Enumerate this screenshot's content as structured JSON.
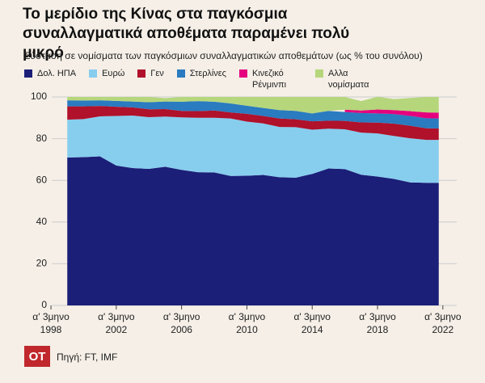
{
  "chart_data": {
    "type": "area",
    "title": "Το μερίδιο της Κίνας στα παγκόσμια συναλλαγματικά αποθέματα παραμένει πολύ μικρό",
    "subtitle": "Σύσταση σε νομίσματα των παγκόσμιων συναλλαγματικών αποθεμάτων (ως % του συνόλου)",
    "x": [
      1999,
      2000,
      2001,
      2002,
      2003,
      2004,
      2005,
      2006,
      2007,
      2008,
      2009,
      2010,
      2011,
      2012,
      2013,
      2014,
      2015,
      2016,
      2017,
      2018,
      2019,
      2020,
      2021,
      2021.75
    ],
    "series": [
      {
        "name": "Δολ. ΗΠΑ",
        "color": "#1b1f78",
        "values": [
          71.0,
          71.1,
          71.5,
          67.1,
          65.9,
          65.5,
          66.5,
          65.0,
          63.9,
          63.8,
          62.1,
          62.2,
          62.6,
          61.5,
          61.3,
          63.1,
          65.7,
          65.4,
          62.7,
          61.8,
          60.7,
          59.0,
          58.8,
          58.8
        ]
      },
      {
        "name": "Ευρώ",
        "color": "#87cdee",
        "values": [
          18.1,
          18.3,
          19.2,
          23.8,
          25.2,
          24.8,
          24.1,
          25.2,
          26.1,
          26.2,
          27.6,
          26.0,
          24.7,
          24.1,
          24.2,
          21.2,
          19.1,
          19.1,
          20.2,
          20.7,
          20.6,
          21.2,
          20.6,
          20.6
        ]
      },
      {
        "name": "Γεν",
        "color": "#b0112b",
        "values": [
          6.4,
          6.1,
          5.0,
          4.4,
          3.9,
          3.8,
          3.6,
          3.1,
          3.2,
          3.5,
          2.9,
          3.7,
          3.6,
          4.1,
          3.8,
          4.0,
          3.8,
          4.0,
          4.9,
          5.2,
          5.9,
          6.0,
          5.6,
          5.5
        ]
      },
      {
        "name": "Στερλίνες",
        "color": "#2a7bc0",
        "values": [
          2.9,
          2.8,
          2.7,
          2.8,
          2.8,
          3.4,
          3.6,
          4.4,
          4.8,
          4.2,
          4.3,
          3.9,
          3.8,
          4.0,
          4.0,
          3.8,
          4.7,
          4.3,
          4.5,
          4.4,
          4.6,
          4.7,
          4.8,
          4.8
        ]
      },
      {
        "name": "Κινεζικό Ρένμινπι",
        "color": "#e5007e",
        "values": [
          null,
          null,
          null,
          null,
          null,
          null,
          null,
          null,
          null,
          null,
          null,
          null,
          null,
          null,
          null,
          null,
          null,
          1.1,
          1.2,
          1.9,
          1.9,
          2.3,
          2.8,
          2.8
        ]
      },
      {
        "name": "Αλλα νομίσματα",
        "color": "#b5d67b",
        "values": [
          1.6,
          1.7,
          1.6,
          1.9,
          2.2,
          2.5,
          1.6,
          2.3,
          2.0,
          2.3,
          3.1,
          4.2,
          5.3,
          6.3,
          6.7,
          7.9,
          6.7,
          6.1,
          4.5,
          6.1,
          5.3,
          6.3,
          7.4,
          7.5
        ]
      }
    ],
    "xlim": [
      1997.85,
      2022.85
    ],
    "xticks": [
      {
        "value": 1998,
        "label": "α' 3μηνο 1998"
      },
      {
        "value": 2002,
        "label": "α' 3μηνο 2002"
      },
      {
        "value": 2006,
        "label": "α' 3μηνο 2006"
      },
      {
        "value": 2010,
        "label": "α' 3μηνο 2010"
      },
      {
        "value": 2014,
        "label": "α' 3μηνο 2014"
      },
      {
        "value": 2018,
        "label": "α' 3μηνο 2018"
      },
      {
        "value": 2022,
        "label": "α' 3μηνο 2022"
      }
    ],
    "ylim": [
      0,
      100
    ],
    "yticks": [
      0,
      20,
      40,
      60,
      80,
      100
    ],
    "grid": true
  },
  "footer": {
    "logo": "OT",
    "source": "Πηγή: FT, IMF"
  }
}
